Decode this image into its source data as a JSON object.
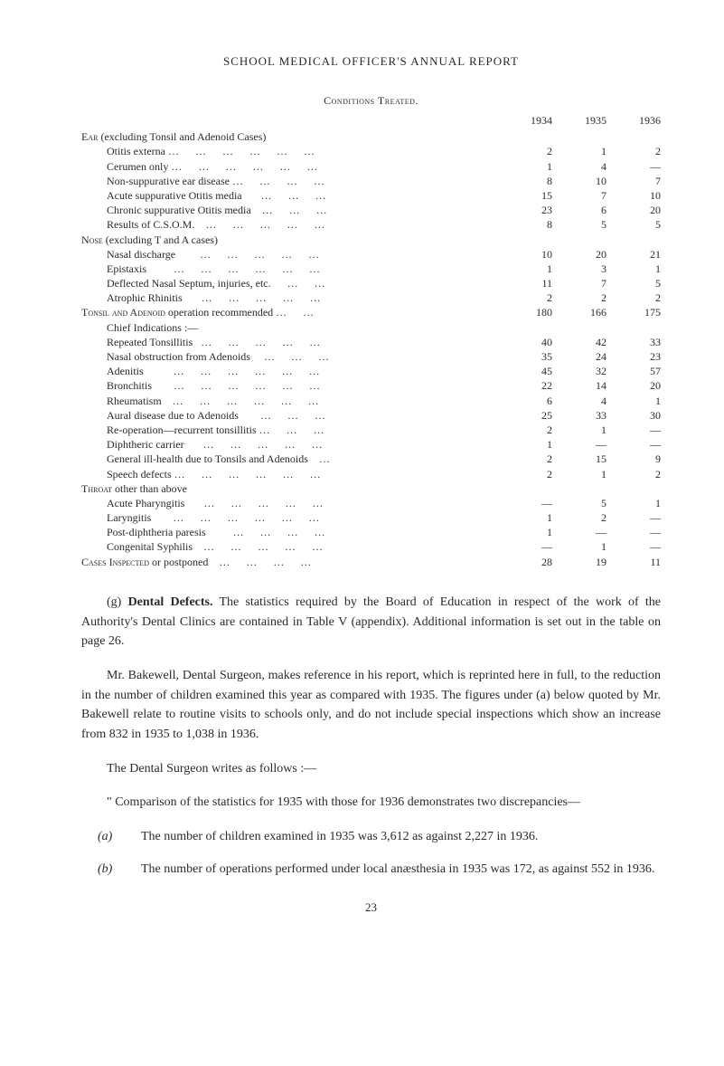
{
  "header": "SCHOOL MEDICAL OFFICER'S ANNUAL REPORT",
  "table": {
    "title": "Conditions Treated.",
    "years": [
      "1934",
      "1935",
      "1936"
    ],
    "sections": [
      {
        "label": "Ear (excluding Tonsil and Adenoid Cases)",
        "smallcaps_prefix": "Ear",
        "rest": " (excluding Tonsil and Adenoid Cases)",
        "rows": [
          {
            "label": "Otitis externa …      …      …      …      …      …",
            "v": [
              "2",
              "1",
              "2"
            ]
          },
          {
            "label": "Cerumen only …      …      …      …      …      …",
            "v": [
              "1",
              "4",
              "—"
            ]
          },
          {
            "label": "Non-suppurative ear disease …      …      …      …",
            "v": [
              "8",
              "10",
              "7"
            ]
          },
          {
            "label": "Acute suppurative Otitis media       …      …      …",
            "v": [
              "15",
              "7",
              "10"
            ]
          },
          {
            "label": "Chronic suppurative Otitis media    …      …      …",
            "v": [
              "23",
              "6",
              "20"
            ]
          },
          {
            "label": "Results of C.S.O.M.    …      …      …      …      …",
            "v": [
              "8",
              "5",
              "5"
            ]
          }
        ]
      },
      {
        "label": "Nose (excluding T and A cases)",
        "smallcaps_prefix": "Nose",
        "rest": " (excluding T and A cases)",
        "rows": [
          {
            "label": "Nasal discharge         …      …      …      …      …",
            "v": [
              "10",
              "20",
              "21"
            ]
          },
          {
            "label": "Epistaxis          …      …      …      …      …      …",
            "v": [
              "1",
              "3",
              "1"
            ]
          },
          {
            "label": "Deflected Nasal Septum, injuries, etc.      …      …",
            "v": [
              "11",
              "7",
              "5"
            ]
          },
          {
            "label": "Atrophic Rhinitis       …      …      …      …      …",
            "v": [
              "2",
              "2",
              "2"
            ]
          }
        ]
      },
      {
        "label": "Tonsil and Adenoid operation recommended …      …",
        "smallcaps_prefix": "Tonsil and Adenoid",
        "rest": " operation recommended …      …",
        "own_values": [
          "180",
          "166",
          "175"
        ],
        "rows": []
      },
      {
        "label": "Chief Indications :—",
        "plain": true,
        "indent": 1,
        "rows": [
          {
            "label": "Repeated Tonsillitis   …      …      …      …      …",
            "v": [
              "40",
              "42",
              "33"
            ]
          },
          {
            "label": "Nasal obstruction from Adenoids     …      …      …",
            "v": [
              "35",
              "24",
              "23"
            ]
          },
          {
            "label": "Adenitis           …      …      …      …      …      …",
            "v": [
              "45",
              "32",
              "57"
            ]
          },
          {
            "label": "Bronchitis        …      …      …      …      …      …",
            "v": [
              "22",
              "14",
              "20"
            ]
          },
          {
            "label": "Rheumatism    …      …      …      …      …      …",
            "v": [
              "6",
              "4",
              "1"
            ]
          },
          {
            "label": "Aural disease due to Adenoids        …      …      …",
            "v": [
              "25",
              "33",
              "30"
            ]
          },
          {
            "label": "Re-operation—recurrent tonsillitis …      …      …",
            "v": [
              "2",
              "1",
              "—"
            ]
          },
          {
            "label": "Diphtheric carrier       …      …      …      …      …",
            "v": [
              "1",
              "—",
              "—"
            ]
          },
          {
            "label": "General ill-health due to Tonsils and Adenoids    …",
            "v": [
              "2",
              "15",
              "9"
            ]
          },
          {
            "label": "Speech defects …      …      …      …      …      …",
            "v": [
              "2",
              "1",
              "2"
            ]
          }
        ]
      },
      {
        "label": "Throat other than above",
        "smallcaps_prefix": "Throat",
        "rest": " other than above",
        "rows": [
          {
            "label": "Acute Pharyngitis       …      …      …      …      …",
            "v": [
              "—",
              "5",
              "1"
            ]
          },
          {
            "label": "Laryngitis        …      …      …      …      …      …",
            "v": [
              "1",
              "2",
              "—"
            ]
          },
          {
            "label": "Post-diphtheria paresis          …      …      …      …",
            "v": [
              "1",
              "—",
              "—"
            ]
          },
          {
            "label": "Congenital Syphilis    …      …      …      …      …",
            "v": [
              "—",
              "1",
              "—"
            ]
          }
        ]
      },
      {
        "label": "Cases Inspected or postponed    …      …      …      …",
        "smallcaps_prefix": "Cases Inspected",
        "rest": " or postponed    …      …      …      …",
        "own_values": [
          "28",
          "19",
          "11"
        ],
        "rows": []
      }
    ]
  },
  "body": {
    "p1_prefix": "(g) ",
    "p1_bold": "Dental Defects.",
    "p1_rest": "  The statistics required by the Board of Education in respect of the work of the Authority's Dental Clinics are contained in Table V (appendix).  Additional information is set out in the table on page 26.",
    "p2": "Mr. Bakewell, Dental Surgeon, makes reference in his report, which is reprinted here in full, to the reduction in the number of children examined this year as compared with 1935. The figures under (a) below quoted by Mr. Bakewell relate to routine visits to schools only, and do not include special inspections which show an increase from 832 in 1935 to 1,038 in 1936.",
    "p3": "The Dental Surgeon writes as follows :—",
    "p4": "\" Comparison of the statistics for 1935 with those for 1936 demonstrates two discrepancies—",
    "list": [
      {
        "marker": "(a)",
        "text": "The number of children examined in 1935 was 3,612 as against 2,227 in 1936."
      },
      {
        "marker": "(b)",
        "text": "The number of operations performed under local anæsthesia in 1935 was 172, as against 552 in 1936."
      }
    ]
  },
  "page_number": "23"
}
